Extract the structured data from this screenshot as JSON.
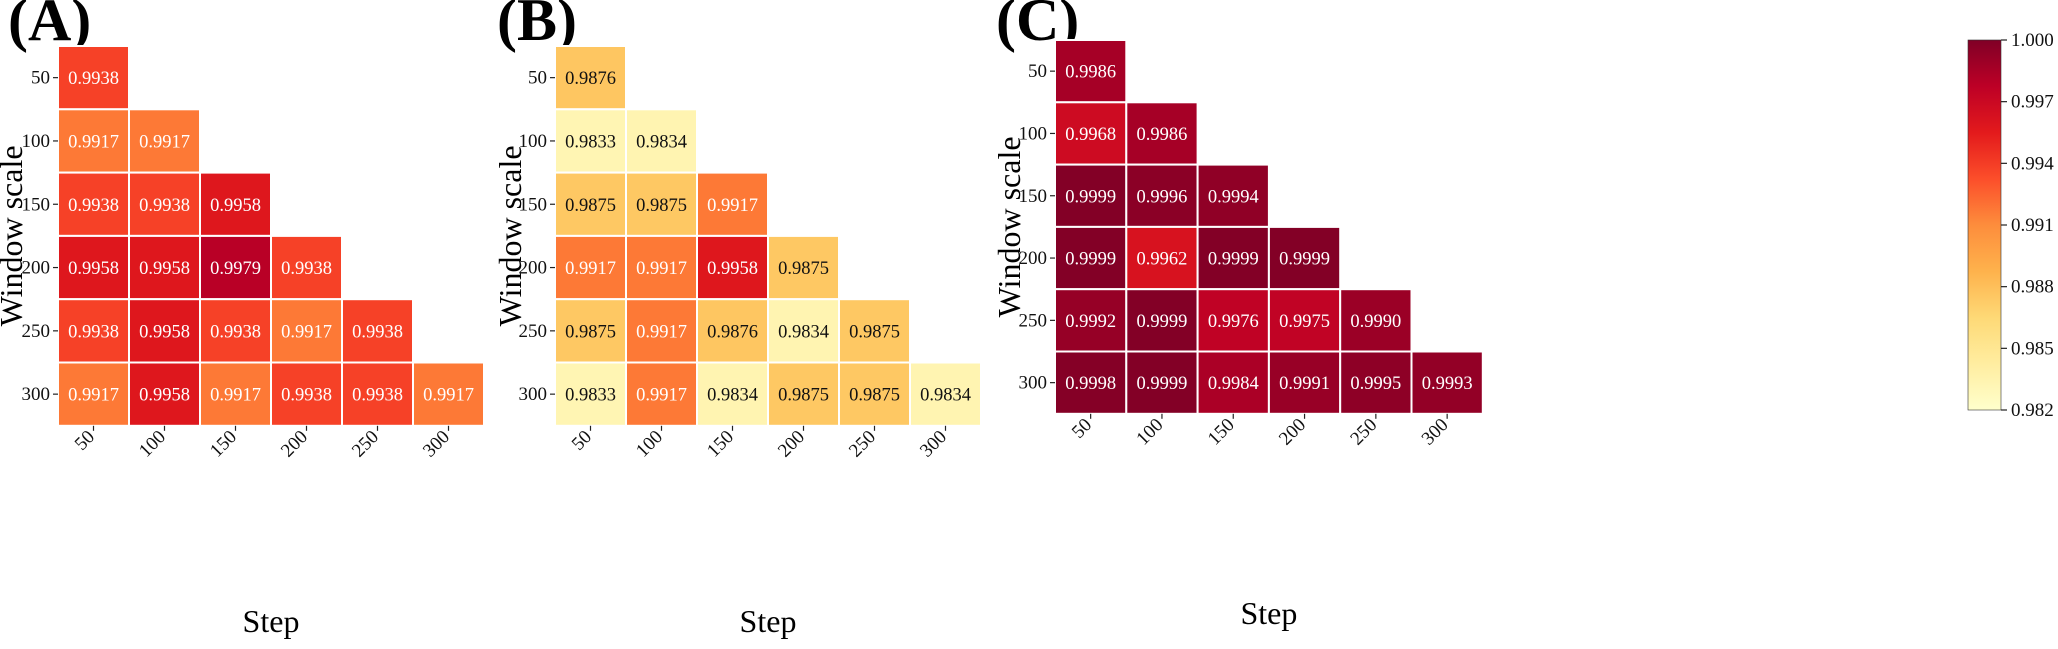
{
  "chart_data": [
    {
      "type": "heatmap",
      "panel_label": "(A)",
      "xlabel": "Step",
      "ylabel": "Window scale",
      "x_ticks": [
        "50",
        "100",
        "150",
        "200",
        "250",
        "300"
      ],
      "y_ticks": [
        "50",
        "100",
        "150",
        "200",
        "250",
        "300"
      ],
      "values": [
        [
          0.9938
        ],
        [
          0.9917,
          0.9917
        ],
        [
          0.9938,
          0.9938,
          0.9958
        ],
        [
          0.9958,
          0.9958,
          0.9979,
          0.9938
        ],
        [
          0.9938,
          0.9958,
          0.9938,
          0.9917,
          0.9938
        ],
        [
          0.9917,
          0.9958,
          0.9917,
          0.9938,
          0.9938,
          0.9917
        ]
      ],
      "labels": [
        [
          "0.9938"
        ],
        [
          "0.9917",
          "0.9917"
        ],
        [
          "0.9938",
          "0.9938",
          "0.9958"
        ],
        [
          "0.9958",
          "0.9958",
          "0.9979",
          "0.9938"
        ],
        [
          "0.9938",
          "0.9958",
          "0.9938",
          "0.9917",
          "0.9938"
        ],
        [
          "0.9917",
          "0.9958",
          "0.9917",
          "0.9938",
          "0.9938",
          "0.9917"
        ]
      ],
      "colormap": "YlOrRd",
      "vmin": 0.982,
      "vmax": 1.0
    },
    {
      "type": "heatmap",
      "panel_label": "(B)",
      "xlabel": "Step",
      "ylabel": "Window scale",
      "x_ticks": [
        "50",
        "100",
        "150",
        "200",
        "250",
        "300"
      ],
      "y_ticks": [
        "50",
        "100",
        "150",
        "200",
        "250",
        "300"
      ],
      "values": [
        [
          0.9876
        ],
        [
          0.9833,
          0.9834
        ],
        [
          0.9875,
          0.9875,
          0.9917
        ],
        [
          0.9917,
          0.9917,
          0.9958,
          0.9875
        ],
        [
          0.9875,
          0.9917,
          0.9876,
          0.9834,
          0.9875
        ],
        [
          0.9833,
          0.9917,
          0.9834,
          0.9875,
          0.9875,
          0.9834
        ]
      ],
      "labels": [
        [
          "0.9876"
        ],
        [
          "0.9833",
          "0.9834"
        ],
        [
          "0.9875",
          "0.9875",
          "0.9917"
        ],
        [
          "0.9917",
          "0.9917",
          "0.9958",
          "0.9875"
        ],
        [
          "0.9875",
          "0.9917",
          "0.9876",
          "0.9834",
          "0.9875"
        ],
        [
          "0.9833",
          "0.9917",
          "0.9834",
          "0.9875",
          "0.9875",
          "0.9834"
        ]
      ],
      "colormap": "YlOrRd",
      "vmin": 0.982,
      "vmax": 1.0
    },
    {
      "type": "heatmap",
      "panel_label": "(C)",
      "xlabel": "Step",
      "ylabel": "Window scale",
      "x_ticks": [
        "50",
        "100",
        "150",
        "200",
        "250",
        "300"
      ],
      "y_ticks": [
        "50",
        "100",
        "150",
        "200",
        "250",
        "300"
      ],
      "values": [
        [
          0.9986
        ],
        [
          0.9968,
          0.9986
        ],
        [
          0.9999,
          0.9996,
          0.9994
        ],
        [
          0.9999,
          0.9962,
          0.9999,
          0.9999
        ],
        [
          0.9992,
          0.9999,
          0.9976,
          0.9975,
          0.999
        ],
        [
          0.9998,
          0.9999,
          0.9984,
          0.9991,
          0.9995,
          0.9993
        ]
      ],
      "labels": [
        [
          "0.9986"
        ],
        [
          "0.9968",
          "0.9986"
        ],
        [
          "0.9999",
          "0.9996",
          "0.9994"
        ],
        [
          "0.9999",
          "0.9962",
          "0.9999",
          "0.9999"
        ],
        [
          "0.9992",
          "0.9999",
          "0.9976",
          "0.9975",
          "0.9990"
        ],
        [
          "0.9998",
          "0.9999",
          "0.9984",
          "0.9991",
          "0.9995",
          "0.9993"
        ]
      ],
      "colormap": "YlOrRd",
      "vmin": 0.982,
      "vmax": 1.0,
      "colorbar": {
        "ticks": [
          "1.000",
          "0.997",
          "0.994",
          "0.991",
          "0.988",
          "0.985",
          "0.982"
        ],
        "tick_values": [
          1.0,
          0.997,
          0.994,
          0.991,
          0.988,
          0.985,
          0.982
        ]
      }
    }
  ],
  "colors": {
    "cmap_stops": [
      "#ffffcc",
      "#ffeda0",
      "#fed976",
      "#feb24c",
      "#fd8d3c",
      "#fc4e2a",
      "#e31a1c",
      "#bd0026",
      "#800026"
    ],
    "cell_border": "#ffffff"
  }
}
